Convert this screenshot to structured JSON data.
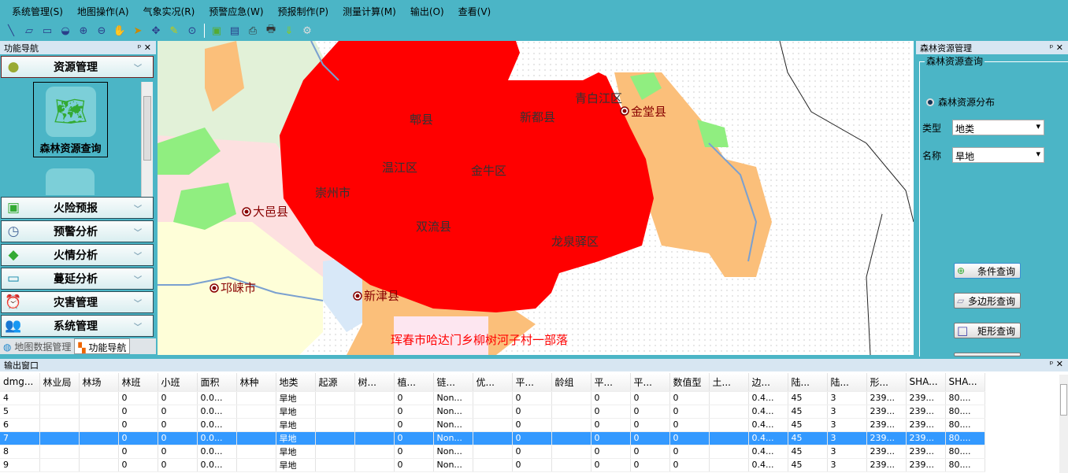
{
  "menu": [
    "系统管理(S)",
    "地图操作(A)",
    "气象实况(R)",
    "预警应急(W)",
    "预报制作(P)",
    "测量计算(M)",
    "输出(O)",
    "查看(V)"
  ],
  "toolbar_icons": [
    "line-icon",
    "erase-icon",
    "rectangle-icon",
    "circle-icon",
    "zoom-in-icon",
    "zoom-out-icon",
    "pan-hand-icon",
    "select-arrow-icon",
    "full-extent-icon",
    "brush-icon",
    "zoom-scale-icon",
    "map-image-icon",
    "book-icon",
    "print-icon",
    "printer-icon",
    "download-icon",
    "settings-gear-icon"
  ],
  "left": {
    "title": "功能导航",
    "active_group": "资源管理",
    "active_item": "森林资源查询",
    "groups": [
      "火险预报",
      "预警分析",
      "火情分析",
      "蔓延分析",
      "灾害管理",
      "系统管理"
    ],
    "tabs": [
      "地图数据管理",
      "功能导航"
    ]
  },
  "map": {
    "labels": [
      "郫县",
      "新都县",
      "青白江区",
      "金堂县",
      "温江区",
      "金牛区",
      "崇州市",
      "大邑县",
      "双流县",
      "龙泉驿区",
      "邛崃市",
      "新津县"
    ],
    "highlight_color": "#ff0000",
    "caption": "珲春市哈达门乡柳树河子村一部落"
  },
  "right": {
    "title": "森林资源管理",
    "group": "森林资源查询",
    "radio": "森林资源分布",
    "type_label": "类型",
    "type_value": "地类",
    "name_label": "名称",
    "name_value": "旱地",
    "buttons": [
      "条件查询",
      "多边形查询",
      "矩形查询"
    ]
  },
  "output": {
    "title": "输出窗口",
    "columns": [
      "dmg...",
      "林业局",
      "林场",
      "林班",
      "小班",
      "面积",
      "林种",
      "地类",
      "起源",
      "树...",
      "植...",
      "链...",
      "优...",
      "平...",
      "龄组",
      "平...",
      "平...",
      "数值型",
      "土...",
      "边...",
      "陆...",
      "陆...",
      "形...",
      "SHA...",
      "SHA..."
    ],
    "rows": [
      [
        "4",
        "",
        "",
        "0",
        "0",
        "0.0...",
        "",
        "旱地",
        "",
        "",
        "0",
        "Non...",
        "",
        "0",
        "",
        "0",
        "0",
        "0",
        "",
        "0.4...",
        "45",
        "3",
        "239...",
        "239...",
        "80...."
      ],
      [
        "5",
        "",
        "",
        "0",
        "0",
        "0.0...",
        "",
        "旱地",
        "",
        "",
        "0",
        "Non...",
        "",
        "0",
        "",
        "0",
        "0",
        "0",
        "",
        "0.4...",
        "45",
        "3",
        "239...",
        "239...",
        "80...."
      ],
      [
        "6",
        "",
        "",
        "0",
        "0",
        "0.0...",
        "",
        "旱地",
        "",
        "",
        "0",
        "Non...",
        "",
        "0",
        "",
        "0",
        "0",
        "0",
        "",
        "0.4...",
        "45",
        "3",
        "239...",
        "239...",
        "80...."
      ],
      [
        "7",
        "",
        "",
        "0",
        "0",
        "0.0...",
        "",
        "旱地",
        "",
        "",
        "0",
        "Non...",
        "",
        "0",
        "",
        "0",
        "0",
        "0",
        "",
        "0.4...",
        "45",
        "3",
        "239...",
        "239...",
        "80...."
      ],
      [
        "8",
        "",
        "",
        "0",
        "0",
        "0.0...",
        "",
        "旱地",
        "",
        "",
        "0",
        "Non...",
        "",
        "0",
        "",
        "0",
        "0",
        "0",
        "",
        "0.4...",
        "45",
        "3",
        "239...",
        "239...",
        "80...."
      ],
      [
        "9",
        "",
        "",
        "0",
        "0",
        "0.0...",
        "",
        "旱地",
        "",
        "",
        "0",
        "Non...",
        "",
        "0",
        "",
        "0",
        "0",
        "0",
        "",
        "0.4...",
        "45",
        "3",
        "239...",
        "239...",
        "80...."
      ]
    ],
    "selected_row": "7"
  }
}
